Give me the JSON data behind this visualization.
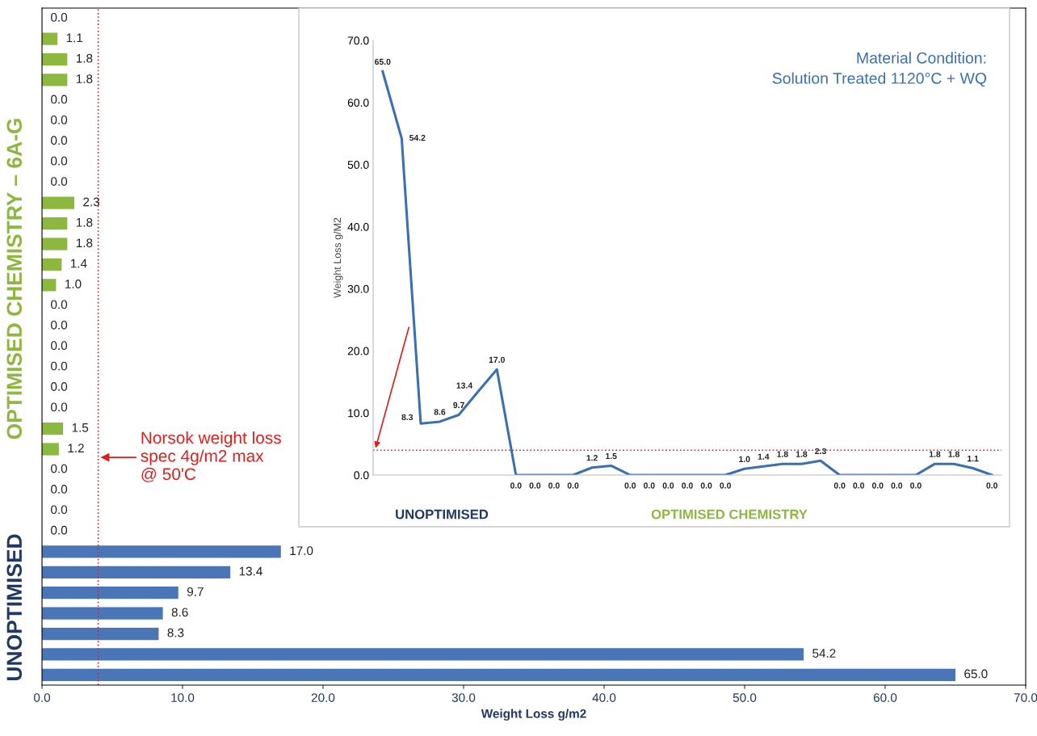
{
  "chart_data": [
    {
      "type": "bar",
      "orientation": "horizontal",
      "xlabel": "Weight Loss g/m2",
      "categories": [
        null,
        null,
        null,
        null,
        null,
        null,
        null,
        null,
        null,
        null,
        null,
        null,
        null,
        null,
        null,
        null,
        null,
        null,
        null,
        null,
        null,
        null,
        null,
        null,
        null,
        null,
        null,
        null,
        null,
        null,
        null,
        null,
        null
      ],
      "values": [
        0.0,
        1.1,
        1.8,
        1.8,
        0.0,
        0.0,
        0.0,
        0.0,
        0.0,
        2.3,
        1.8,
        1.8,
        1.4,
        1.0,
        0.0,
        0.0,
        0.0,
        0.0,
        0.0,
        0.0,
        1.5,
        1.2,
        0.0,
        0.0,
        0.0,
        0.0,
        17.0,
        13.4,
        9.7,
        8.6,
        8.3,
        54.2,
        65.0
      ],
      "value_labels": [
        "0.0",
        "1.1",
        "1.8",
        "1.8",
        "0.0",
        "0.0",
        "0.0",
        "0.0",
        "0.0",
        "2.3",
        "1.8",
        "1.8",
        "1.4",
        "1.0",
        "0.0",
        "0.0",
        "0.0",
        "0.0",
        "0.0",
        "0.0",
        "1.5",
        "1.2",
        "0.0",
        "0.0",
        "0.0",
        "0.0",
        "17.0",
        "13.4",
        "9.7",
        "8.6",
        "8.3",
        "54.2",
        "65.0"
      ],
      "colors": [
        "#8cb83f",
        "#8cb83f",
        "#8cb83f",
        "#8cb83f",
        "#8cb83f",
        "#8cb83f",
        "#8cb83f",
        "#8cb83f",
        "#8cb83f",
        "#8cb83f",
        "#8cb83f",
        "#8cb83f",
        "#8cb83f",
        "#8cb83f",
        "#8cb83f",
        "#8cb83f",
        "#8cb83f",
        "#8cb83f",
        "#8cb83f",
        "#8cb83f",
        "#8cb83f",
        "#8cb83f",
        "#8cb83f",
        "#8cb83f",
        "#8cb83f",
        "#8cb83f",
        "#4a76b8",
        "#4a76b8",
        "#4a76b8",
        "#4a76b8",
        "#4a76b8",
        "#4a76b8",
        "#4a76b8"
      ],
      "xlim": [
        0,
        70
      ],
      "xticks": [
        {
          "value": 0,
          "label": "0.0"
        },
        {
          "value": 10,
          "label": "10.0"
        },
        {
          "value": 20,
          "label": "20.0"
        },
        {
          "value": 30,
          "label": "30.0"
        },
        {
          "value": 40,
          "label": "40.0"
        },
        {
          "value": 50,
          "label": "50.0"
        },
        {
          "value": 60,
          "label": "60.0"
        },
        {
          "value": 70,
          "label": "70.0"
        }
      ],
      "tick_labels": "x",
      "ref_lines": [
        {
          "axis": "x",
          "value": 4,
          "label": "Norsok weight loss\nspec 4g/m2 max\n@ 50'C",
          "color": "#e0201c",
          "line_style": "dotted"
        }
      ],
      "annotations": [
        "OPTIMISED CHEMISTRY – 6A-G",
        "UNOPTIMISED"
      ]
    },
    {
      "type": "line",
      "ylabel": "Weight Loss g/M2",
      "categories": [
        null,
        null,
        null,
        null,
        null,
        null,
        null,
        null,
        null,
        null,
        null,
        null,
        null,
        null,
        null,
        null,
        null,
        null,
        null,
        null,
        null,
        null,
        null,
        null,
        null,
        null,
        null,
        null,
        null,
        null,
        null,
        null,
        null
      ],
      "series": [
        {
          "color": "#3a6fb2",
          "values": [
            65.0,
            54.2,
            8.3,
            8.6,
            9.7,
            13.4,
            17.0,
            0.0,
            0.0,
            0.0,
            0.0,
            1.2,
            1.5,
            0.0,
            0.0,
            0.0,
            0.0,
            0.0,
            0.0,
            1.0,
            1.4,
            1.8,
            1.8,
            2.3,
            0.0,
            0.0,
            0.0,
            0.0,
            0.0,
            1.8,
            1.8,
            1.1,
            0.0
          ],
          "value_labels": [
            "65.0",
            "54.2",
            "8.3",
            "8.6",
            "9.7",
            "13.4",
            "17.0",
            "0.0",
            "0.0",
            "0.0",
            "0.0",
            "1.2",
            "1.5",
            "0.0",
            "0.0",
            "0.0",
            "0.0",
            "0.0",
            "0.0",
            "1.0",
            "1.4",
            "1.8",
            "1.8",
            "2.3",
            "0.0",
            "0.0",
            "0.0",
            "0.0",
            "0.0",
            "1.8",
            "1.8",
            "1.1",
            "0.0"
          ]
        }
      ],
      "marker": "none",
      "line_style": "solid",
      "ylim": [
        0,
        70
      ],
      "yticks": [
        {
          "value": 0,
          "label": "0.0"
        },
        {
          "value": 10,
          "label": "10.0"
        },
        {
          "value": 20,
          "label": "20.0"
        },
        {
          "value": 30,
          "label": "30.0"
        },
        {
          "value": 40,
          "label": "40.0"
        },
        {
          "value": 50,
          "label": "50.0"
        },
        {
          "value": 60,
          "label": "60.0"
        },
        {
          "value": 70,
          "label": "70.0"
        }
      ],
      "tick_labels": "y",
      "ref_lines": [
        {
          "axis": "y",
          "value": 4,
          "label": null,
          "color": "#e0201c",
          "line_style": "dotted"
        }
      ],
      "annotations": [
        "Material Condition:\nSolution Treated 1120°C + WQ",
        "UNOPTIMISED",
        "OPTIMISED CHEMISTRY"
      ]
    }
  ]
}
